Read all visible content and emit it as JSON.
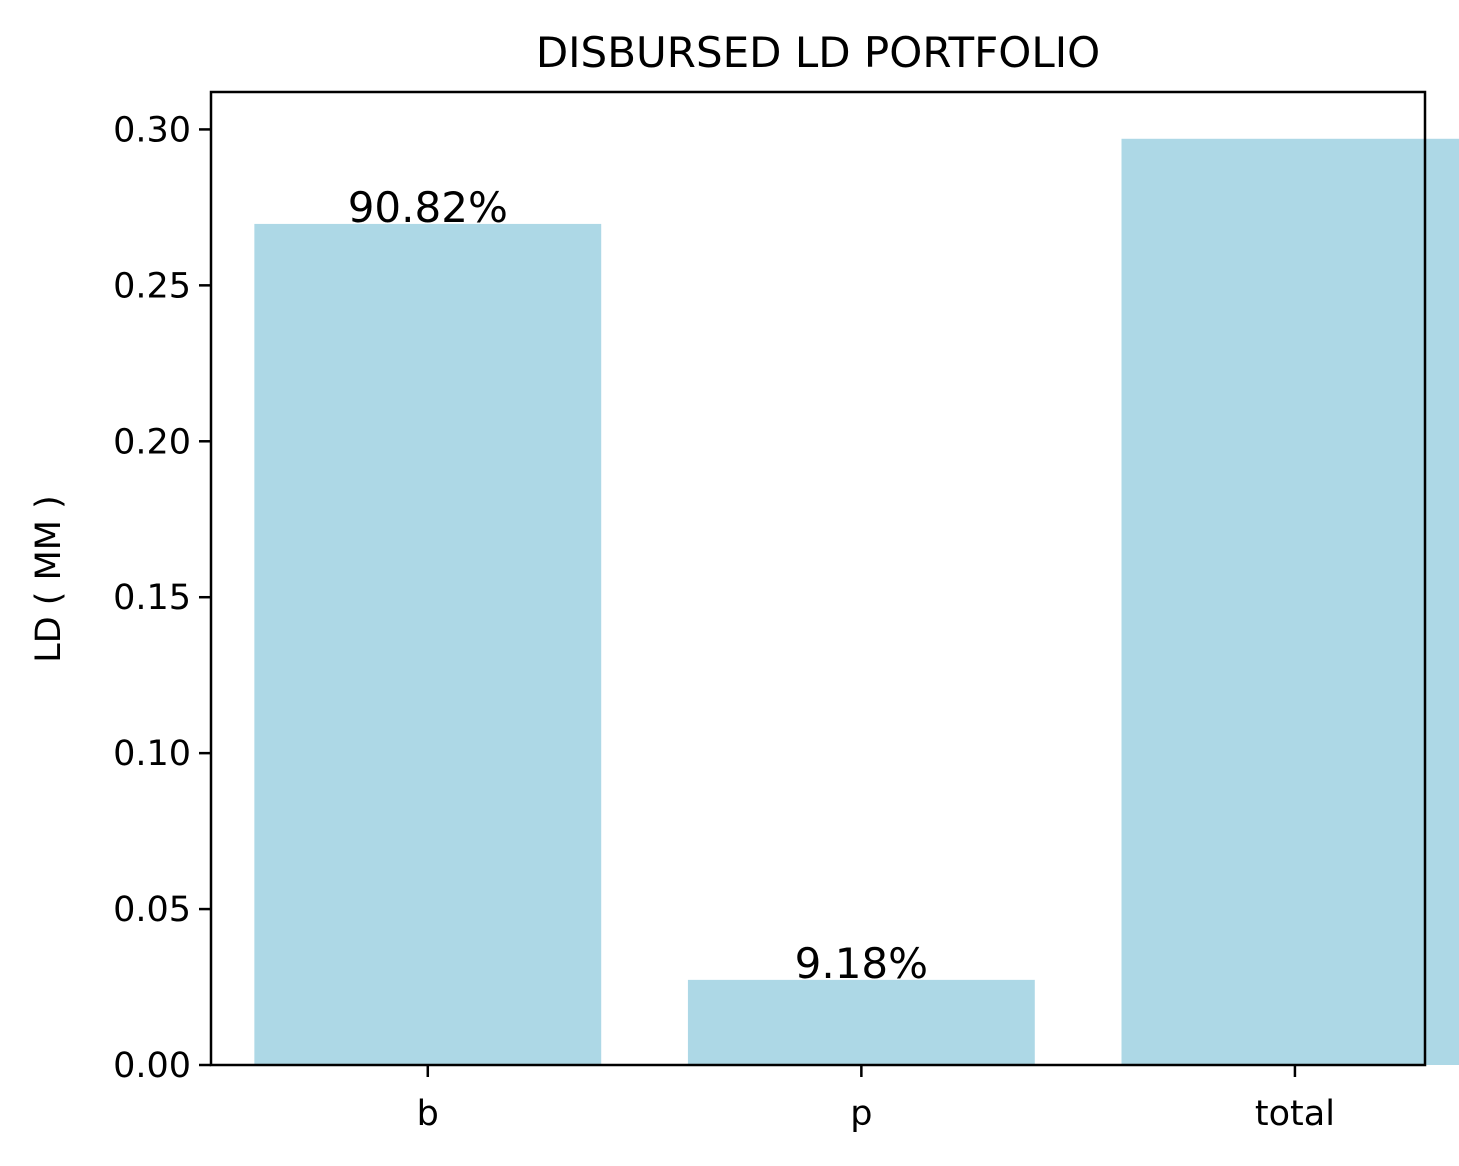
{
  "chart_data": {
    "type": "bar",
    "title": "DISBURSED LD PORTFOLIO",
    "xlabel": "",
    "ylabel": "LD ( MM )",
    "categories": [
      "b",
      "p",
      "total"
    ],
    "values": [
      0.2697,
      0.0273,
      0.297
    ],
    "bar_labels": [
      "90.82%",
      "9.18%",
      ""
    ],
    "ylim": [
      0,
      0.312
    ],
    "yticks": [
      0.0,
      0.05,
      0.1,
      0.15,
      0.2,
      0.25,
      0.3
    ],
    "ytick_labels": [
      "0.00",
      "0.05",
      "0.10",
      "0.15",
      "0.20",
      "0.25",
      "0.30"
    ],
    "bar_color": "#add8e6",
    "grid": false,
    "legend": "none"
  }
}
